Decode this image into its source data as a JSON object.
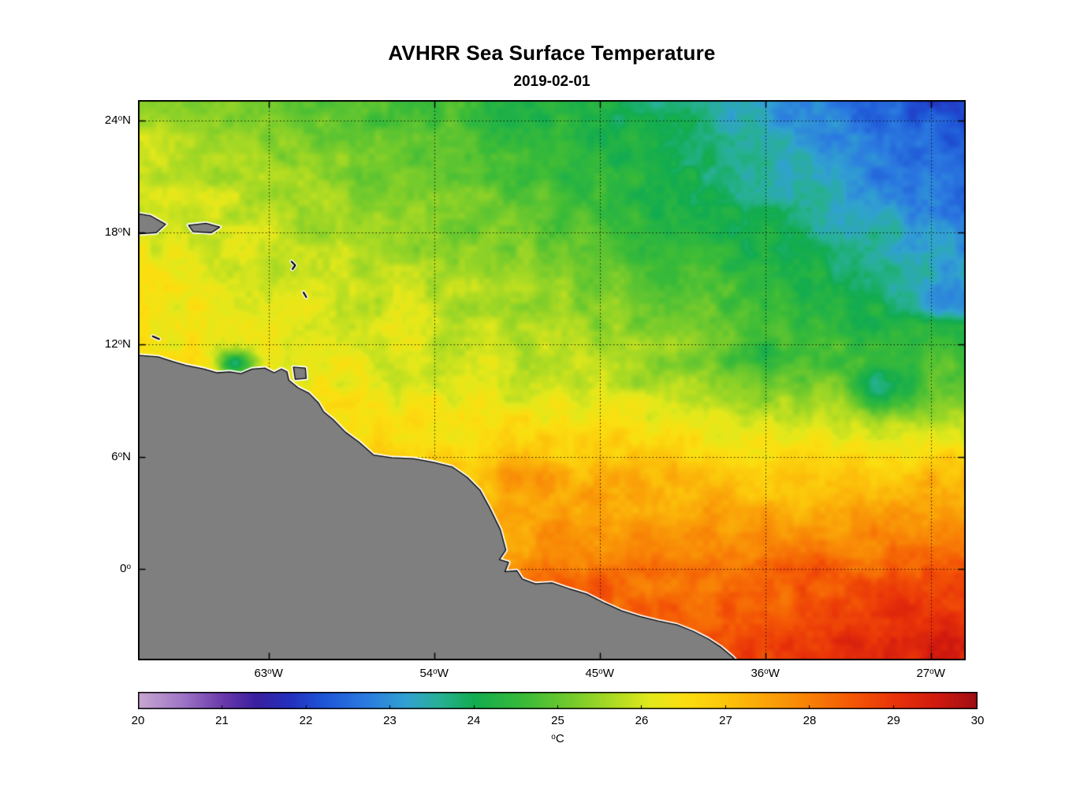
{
  "chart_data": {
    "type": "heatmap",
    "title": "AVHRR Sea Surface Temperature",
    "subtitle": "2019-02-01",
    "grid_on": true,
    "grid_color": "rgba(0,0,0,0.85)",
    "extent": {
      "lon_min": -70.1,
      "lon_max": -25.1,
      "lat_min": -4.9,
      "lat_max": 25.1
    },
    "x_ticks": [
      {
        "lon": -63,
        "num": "63",
        "deg": "o",
        "suffix": "W"
      },
      {
        "lon": -54,
        "num": "54",
        "deg": "o",
        "suffix": "W"
      },
      {
        "lon": -45,
        "num": "45",
        "deg": "o",
        "suffix": "W"
      },
      {
        "lon": -36,
        "num": "36",
        "deg": "o",
        "suffix": "W"
      },
      {
        "lon": -27,
        "num": "27",
        "deg": "o",
        "suffix": "W"
      }
    ],
    "y_ticks": [
      {
        "lat": 24,
        "num": "24",
        "deg": "o",
        "suffix": "N"
      },
      {
        "lat": 18,
        "num": "18",
        "deg": "o",
        "suffix": "N"
      },
      {
        "lat": 12,
        "num": "12",
        "deg": "o",
        "suffix": "N"
      },
      {
        "lat": 6,
        "num": "6",
        "deg": "o",
        "suffix": "N"
      },
      {
        "lat": 0,
        "num": "0",
        "deg": "o",
        "suffix": ""
      }
    ],
    "grid": {
      "lats": [
        25,
        20,
        15,
        10,
        5,
        0,
        -5
      ],
      "lons": [
        -70,
        -65,
        -60,
        -55,
        -50,
        -45,
        -40,
        -35,
        -30,
        -25
      ],
      "sst": [
        [
          25.6,
          25.3,
          24.9,
          24.8,
          24.4,
          24.1,
          23.6,
          23.0,
          22.4,
          22.1
        ],
        [
          26.0,
          25.8,
          25.5,
          25.2,
          24.9,
          24.5,
          24.1,
          23.6,
          23.0,
          22.5
        ],
        [
          26.3,
          26.1,
          26.0,
          25.8,
          25.6,
          25.2,
          24.8,
          24.4,
          23.9,
          23.4
        ],
        [
          26.7,
          26.4,
          26.3,
          26.1,
          26.0,
          25.8,
          25.5,
          25.2,
          24.9,
          25.0
        ],
        [
          27.0,
          27.0,
          27.0,
          26.9,
          27.1,
          27.3,
          27.1,
          26.9,
          27.0,
          27.2
        ],
        [
          27.5,
          27.5,
          27.5,
          27.5,
          27.8,
          28.0,
          28.0,
          28.1,
          28.2,
          28.4
        ],
        [
          28.0,
          28.0,
          28.0,
          28.0,
          28.2,
          28.5,
          28.7,
          28.9,
          29.1,
          29.3
        ]
      ]
    },
    "anomalies": [
      {
        "lon": -64.8,
        "lat": 11.0,
        "sx": 0.8,
        "sy": 0.5,
        "amp": -2.2
      },
      {
        "lon": -29.5,
        "lat": 9.6,
        "sx": 1.2,
        "sy": 0.9,
        "amp": -1.2
      },
      {
        "lon": -36.2,
        "lat": 11.4,
        "sx": 1.8,
        "sy": 0.6,
        "amp": -0.6
      },
      {
        "lon": -49.0,
        "lat": 4.9,
        "sx": 1.1,
        "sy": 0.6,
        "amp": 0.7
      },
      {
        "lon": -28.5,
        "lat": -2.5,
        "sx": 2.5,
        "sy": 1.5,
        "amp": 0.4
      },
      {
        "lon": -26.0,
        "lat": 14.2,
        "sx": 1.0,
        "sy": 0.8,
        "amp": -0.8
      },
      {
        "lon": -46.5,
        "lat": -1.0,
        "sx": 2.2,
        "sy": 0.8,
        "amp": 0.5
      },
      {
        "lon": -33.0,
        "lat": 0.3,
        "sx": 2.5,
        "sy": 1.0,
        "amp": 0.3
      }
    ],
    "noise": {
      "octaves": [
        {
          "scale": 1.0,
          "amp": 0.3
        },
        {
          "scale": 0.35,
          "amp": 0.15
        }
      ]
    },
    "colormap_stops": [
      [
        0.0,
        "#C8A8D2"
      ],
      [
        0.05,
        "#A178C6"
      ],
      [
        0.1,
        "#6B3AAB"
      ],
      [
        0.14,
        "#3A1F9E"
      ],
      [
        0.18,
        "#2430BE"
      ],
      [
        0.22,
        "#1E55D6"
      ],
      [
        0.27,
        "#2B7AE0"
      ],
      [
        0.32,
        "#31A2D0"
      ],
      [
        0.36,
        "#27B093"
      ],
      [
        0.4,
        "#12AC50"
      ],
      [
        0.46,
        "#3BBB38"
      ],
      [
        0.52,
        "#79CC2B"
      ],
      [
        0.57,
        "#B2DC22"
      ],
      [
        0.61,
        "#E3E81B"
      ],
      [
        0.65,
        "#FBDF10"
      ],
      [
        0.7,
        "#FCC50B"
      ],
      [
        0.75,
        "#FAA308"
      ],
      [
        0.8,
        "#F88006"
      ],
      [
        0.85,
        "#F45805"
      ],
      [
        0.9,
        "#E93409"
      ],
      [
        0.95,
        "#D21A0E"
      ],
      [
        1.0,
        "#9F0E13"
      ]
    ],
    "colorbar": {
      "range": [
        20,
        30
      ],
      "ticks": [
        "20",
        "21",
        "22",
        "23",
        "24",
        "25",
        "26",
        "27",
        "28",
        "29",
        "30"
      ],
      "unit_deg": "o",
      "unit_text": "C"
    },
    "land": {
      "fill": "#7F7F7F",
      "coast_halo": "#FFFFFF",
      "outline": "#000000",
      "mainland": [
        [
          -71.0,
          11.6
        ],
        [
          -70.3,
          11.45
        ],
        [
          -69.0,
          11.35
        ],
        [
          -68.2,
          11.1
        ],
        [
          -67.5,
          10.9
        ],
        [
          -66.5,
          10.7
        ],
        [
          -65.8,
          10.5
        ],
        [
          -65.1,
          10.55
        ],
        [
          -64.5,
          10.45
        ],
        [
          -63.9,
          10.7
        ],
        [
          -63.2,
          10.75
        ],
        [
          -62.7,
          10.5
        ],
        [
          -62.3,
          10.7
        ],
        [
          -62.0,
          10.55
        ],
        [
          -61.9,
          10.1
        ],
        [
          -61.4,
          9.7
        ],
        [
          -60.8,
          9.4
        ],
        [
          -60.3,
          8.9
        ],
        [
          -60.0,
          8.4
        ],
        [
          -59.5,
          8.0
        ],
        [
          -58.8,
          7.3
        ],
        [
          -58.1,
          6.8
        ],
        [
          -57.3,
          6.1
        ],
        [
          -56.3,
          5.95
        ],
        [
          -55.1,
          5.9
        ],
        [
          -54.0,
          5.7
        ],
        [
          -53.0,
          5.45
        ],
        [
          -52.2,
          4.9
        ],
        [
          -51.5,
          4.2
        ],
        [
          -51.0,
          3.3
        ],
        [
          -50.4,
          2.1
        ],
        [
          -50.1,
          1.0
        ],
        [
          -50.45,
          0.5
        ],
        [
          -49.95,
          0.35
        ],
        [
          -50.15,
          -0.15
        ],
        [
          -49.5,
          -0.1
        ],
        [
          -49.2,
          -0.55
        ],
        [
          -48.5,
          -0.8
        ],
        [
          -47.6,
          -0.75
        ],
        [
          -46.7,
          -1.05
        ],
        [
          -45.7,
          -1.35
        ],
        [
          -44.7,
          -1.85
        ],
        [
          -43.8,
          -2.25
        ],
        [
          -42.8,
          -2.55
        ],
        [
          -41.8,
          -2.8
        ],
        [
          -40.8,
          -3.0
        ],
        [
          -39.9,
          -3.35
        ],
        [
          -39.1,
          -3.75
        ],
        [
          -38.4,
          -4.2
        ],
        [
          -37.8,
          -4.7
        ],
        [
          -37.4,
          -5.1
        ],
        [
          -37.2,
          -6.0
        ],
        [
          -71.0,
          -6.0
        ]
      ],
      "islands": [
        {
          "name": "hispaniola-east",
          "points": [
            [
              -70.6,
              19.1
            ],
            [
              -69.4,
              18.9
            ],
            [
              -68.6,
              18.45
            ],
            [
              -69.1,
              18.0
            ],
            [
              -70.6,
              17.9
            ]
          ]
        },
        {
          "name": "puerto-rico",
          "points": [
            [
              -67.35,
              18.4
            ],
            [
              -66.4,
              18.5
            ],
            [
              -65.65,
              18.3
            ],
            [
              -66.1,
              18.0
            ],
            [
              -67.1,
              18.05
            ]
          ]
        },
        {
          "name": "trinidad",
          "points": [
            [
              -61.65,
              10.8
            ],
            [
              -61.0,
              10.75
            ],
            [
              -60.95,
              10.2
            ],
            [
              -61.55,
              10.15
            ]
          ]
        }
      ],
      "island_dashes": [
        {
          "name": "aruba-curacao",
          "points": [
            [
              -69.3,
              12.45
            ],
            [
              -68.95,
              12.3
            ]
          ]
        },
        {
          "name": "guadeloupe",
          "points": [
            [
              -61.75,
              16.45
            ],
            [
              -61.55,
              16.25
            ],
            [
              -61.7,
              16.05
            ]
          ]
        },
        {
          "name": "martinique",
          "points": [
            [
              -61.1,
              14.8
            ],
            [
              -60.95,
              14.55
            ]
          ]
        }
      ]
    }
  }
}
